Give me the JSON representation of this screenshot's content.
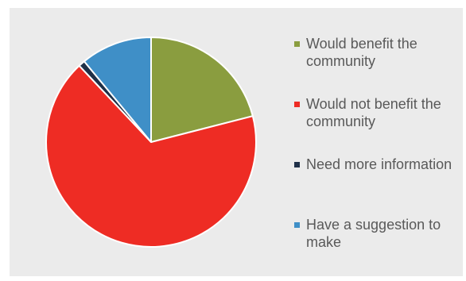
{
  "chart_data": {
    "type": "pie",
    "title": "",
    "legend_position": "right",
    "slices": [
      {
        "label": "Would benefit the community",
        "value": 21,
        "color": "#8a9d3f"
      },
      {
        "label": "Would not benefit the community",
        "value": 67,
        "color": "#ee2c24"
      },
      {
        "label": "Need more information",
        "value": 1,
        "color": "#1f3048"
      },
      {
        "label": "Have a suggestion to make",
        "value": 11,
        "color": "#3f8fc7"
      }
    ]
  },
  "legend": {
    "items": [
      {
        "label": "Would benefit the community",
        "color": "#8a9d3f"
      },
      {
        "label": "Would not benefit the community",
        "color": "#ee2c24"
      },
      {
        "label": "Need more information",
        "color": "#1f3048"
      },
      {
        "label": "Have a suggestion to make",
        "color": "#3f8fc7"
      }
    ]
  },
  "colors": {
    "background": "#ebebeb",
    "slice_border": "#ffffff",
    "legend_text": "#595959"
  }
}
